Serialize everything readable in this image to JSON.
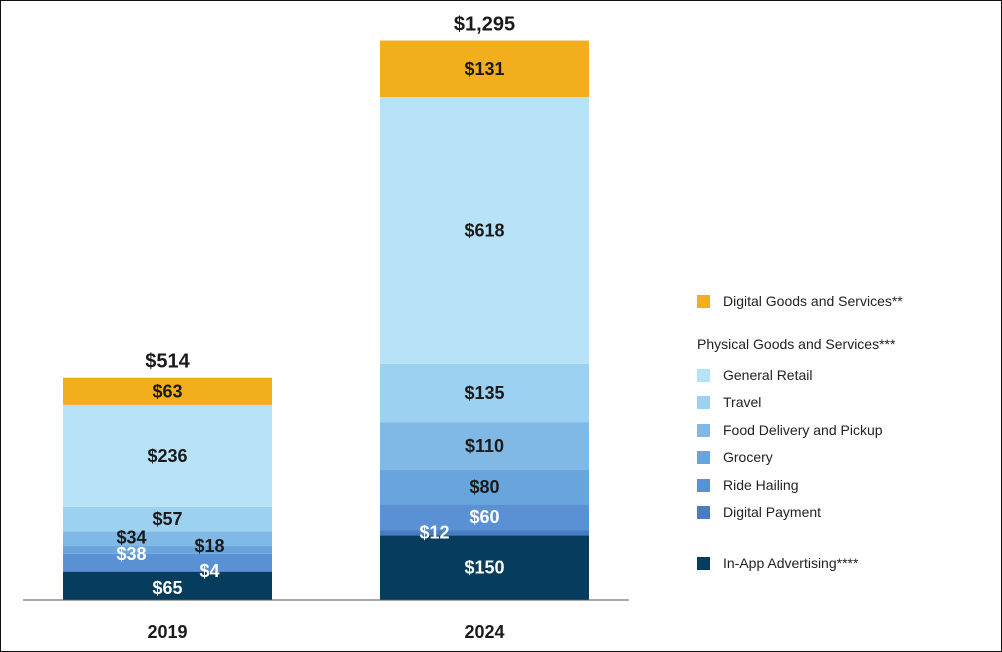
{
  "chart_data": {
    "type": "bar",
    "stacked": true,
    "categories": [
      "2019",
      "2024"
    ],
    "totals": [
      "$514",
      "$1,295"
    ],
    "series": [
      {
        "name": "In-App Advertising****",
        "color": "#063d5e",
        "values": [
          65,
          150
        ],
        "labels": [
          "$65",
          "$150"
        ],
        "label_color": "#ffffff"
      },
      {
        "name": "Digital Payment",
        "color": "#4a7cc4",
        "values": [
          4,
          12
        ],
        "labels": [
          "$4",
          "$12"
        ],
        "label_color": "#ffffff"
      },
      {
        "name": "Ride Hailing",
        "color": "#5a91d4",
        "values": [
          38,
          60
        ],
        "labels": [
          "$38",
          "$60"
        ],
        "label_color": "#ffffff"
      },
      {
        "name": "Grocery",
        "color": "#68a5dc",
        "values": [
          18,
          80
        ],
        "labels": [
          "$18",
          "$80"
        ],
        "label_color": "#1a1a1a"
      },
      {
        "name": "Food Delivery and Pickup",
        "color": "#80b9e6",
        "values": [
          34,
          110
        ],
        "labels": [
          "$34",
          "$110"
        ],
        "label_color": "#1a1a1a"
      },
      {
        "name": "Travel",
        "color": "#9dd1f2",
        "values": [
          57,
          135
        ],
        "labels": [
          "$57",
          "$135"
        ],
        "label_color": "#1a1a1a"
      },
      {
        "name": "General Retail",
        "color": "#b7e3f8",
        "values": [
          236,
          618
        ],
        "labels": [
          "$236",
          "$618"
        ],
        "label_color": "#1a1a1a"
      },
      {
        "name": "Digital Goods and Services**",
        "color": "#f2ae1c",
        "values": [
          63,
          131
        ],
        "labels": [
          "$63",
          "$131"
        ],
        "label_color": "#1a1a1a"
      }
    ],
    "ylim": [
      0,
      1295
    ],
    "grid": false,
    "legend_position": "right",
    "legend_group_heading": "Physical Goods and Services***"
  }
}
